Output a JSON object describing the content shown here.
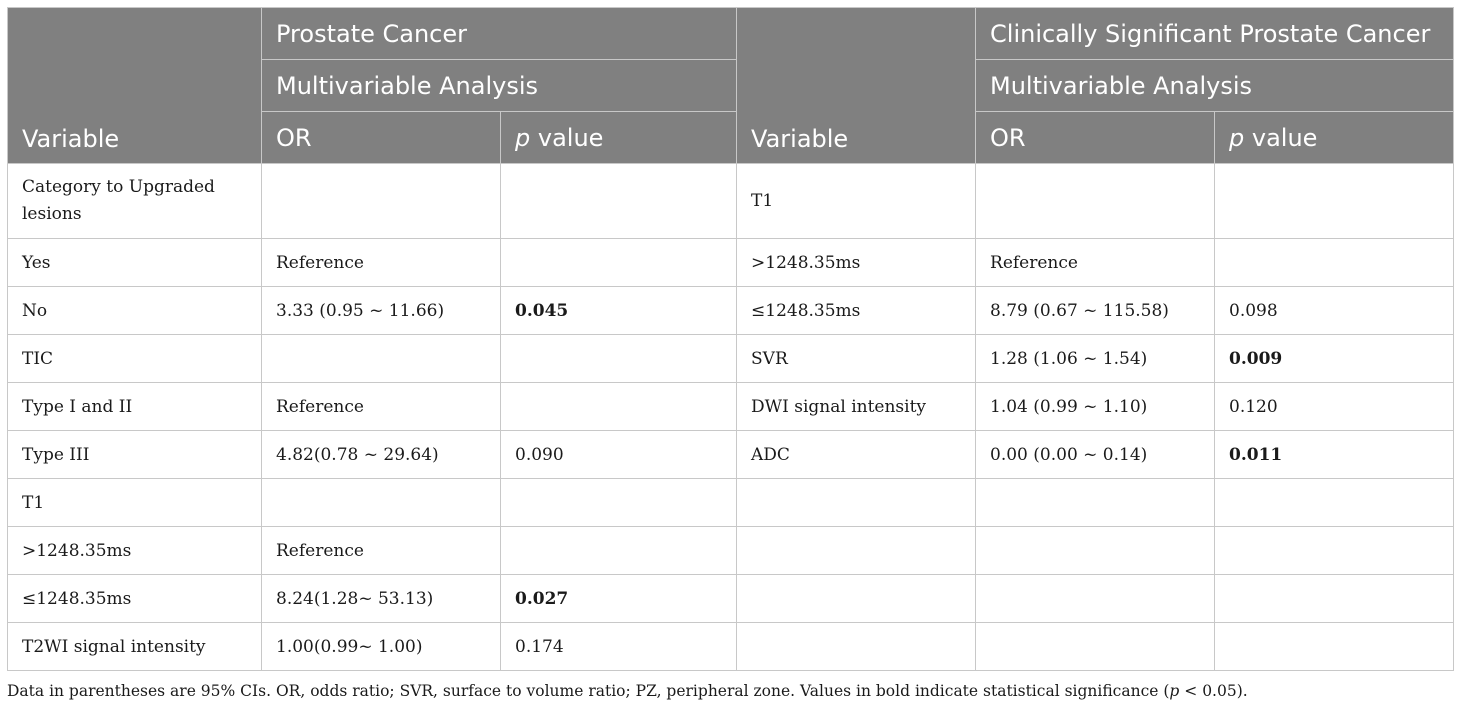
{
  "header": {
    "group_left": "Prostate Cancer",
    "group_right": "Clinically Significant Prostate Cancer",
    "analysis_left": "Multivariable Analysis",
    "analysis_right": "Multivariable Analysis",
    "variable": "Variable",
    "or": "OR",
    "p_italic": "p",
    "p_rest": " value"
  },
  "rows": [
    [
      "Category to Upgraded lesions",
      "",
      "",
      "T1",
      "",
      ""
    ],
    [
      "Yes",
      "Reference",
      "",
      ">1248.35ms",
      "Reference",
      ""
    ],
    [
      "No",
      "3.33 (0.95 ~ 11.66)",
      "0.045",
      "≤1248.35ms",
      "8.79 (0.67 ~ 115.58)",
      "0.098"
    ],
    [
      "TIC",
      "",
      "",
      "SVR",
      "1.28 (1.06 ~ 1.54)",
      "0.009"
    ],
    [
      "Type I and II",
      "Reference",
      "",
      "DWI signal intensity",
      "1.04 (0.99 ~ 1.10)",
      "0.120"
    ],
    [
      "Type III",
      "4.82(0.78 ~ 29.64)",
      "0.090",
      "ADC",
      "0.00 (0.00 ~ 0.14)",
      "0.011"
    ],
    [
      "T1",
      "",
      "",
      "",
      "",
      ""
    ],
    [
      ">1248.35ms",
      "Reference",
      "",
      "",
      "",
      ""
    ],
    [
      "≤1248.35ms",
      "8.24(1.28~ 53.13)",
      "0.027",
      "",
      "",
      ""
    ],
    [
      "T2WI signal intensity",
      "1.00(0.99~ 1.00)",
      "0.174",
      "",
      "",
      ""
    ]
  ],
  "bold_p_values": [
    "0.045",
    "0.009",
    "0.011",
    "0.027"
  ],
  "footnote": {
    "text_before": "Data in parentheses are 95% CIs. OR, odds ratio; SVR, surface to volume ratio; PZ, peripheral zone. Values in bold indicate statistical significance (",
    "p_italic": "p",
    "text_after": " < 0.05)."
  },
  "colors": {
    "header_bg": "#808080",
    "header_text": "#ffffff",
    "grid_line": "#c8c8c8",
    "body_text": "#1a1a1a"
  }
}
